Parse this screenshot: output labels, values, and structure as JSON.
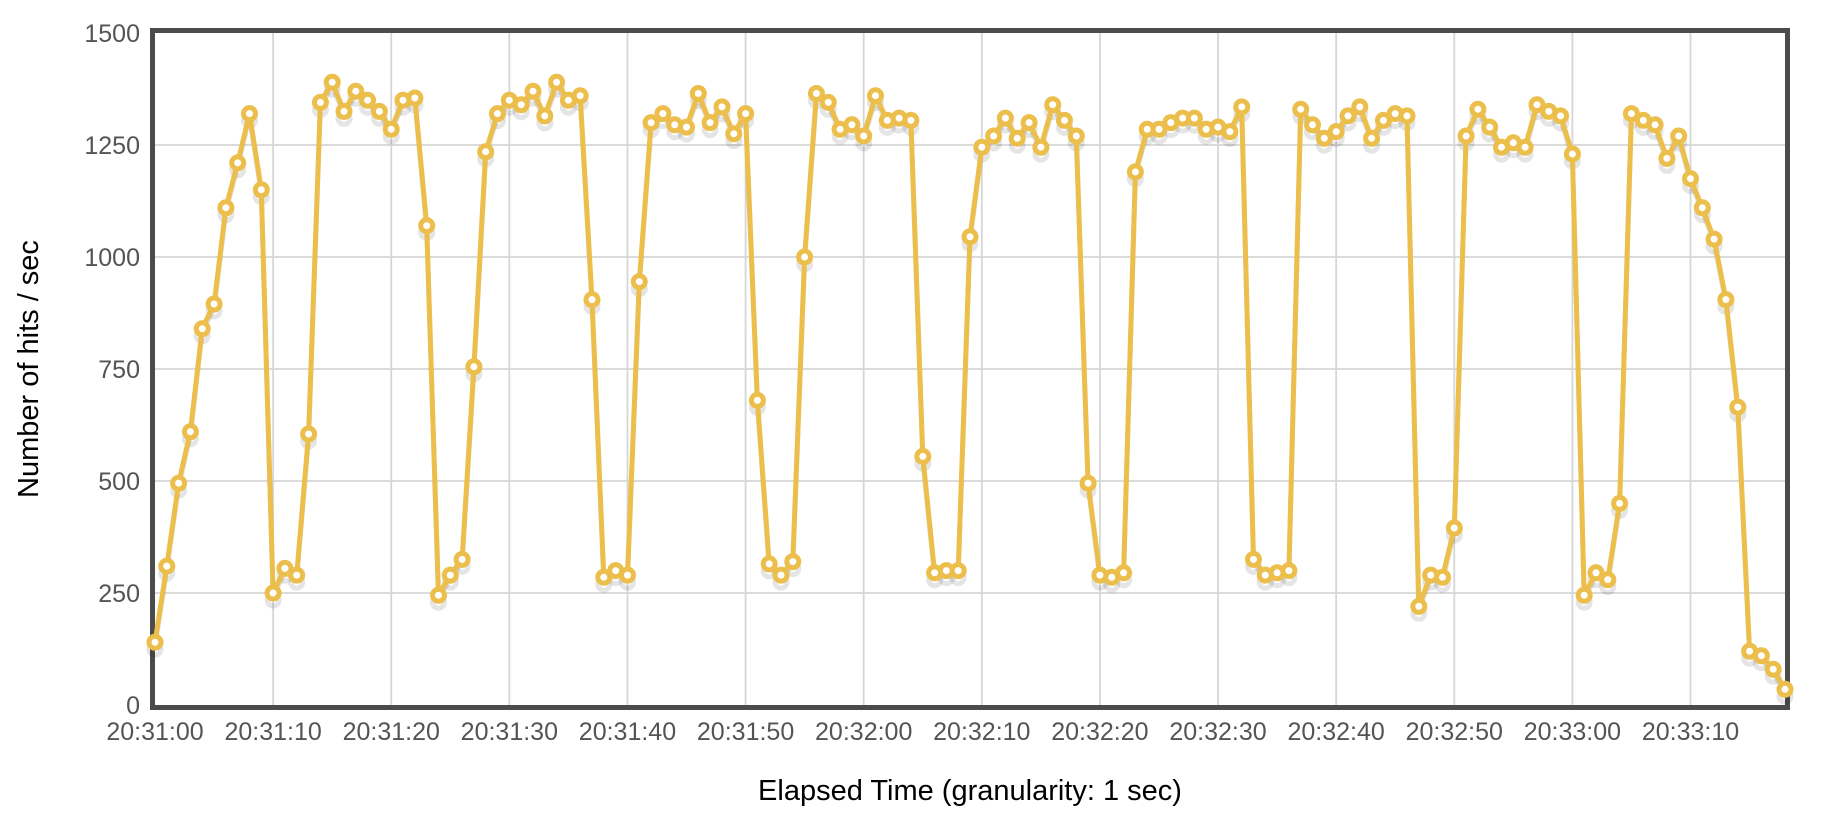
{
  "chart_data": {
    "type": "line",
    "title": "",
    "xlabel": "Elapsed Time (granularity: 1 sec)",
    "ylabel": "Number of hits / sec",
    "ylim": [
      0,
      1500
    ],
    "y_ticks": [
      0,
      250,
      500,
      750,
      1000,
      1250,
      1500
    ],
    "x_tick_labels": [
      "20:31:00",
      "20:31:10",
      "20:31:20",
      "20:31:30",
      "20:31:40",
      "20:31:50",
      "20:32:00",
      "20:32:10",
      "20:32:20",
      "20:32:30",
      "20:32:40",
      "20:32:50",
      "20:33:00",
      "20:33:10"
    ],
    "x_tick_seconds": [
      0,
      10,
      20,
      30,
      40,
      50,
      60,
      70,
      80,
      90,
      100,
      110,
      120,
      130
    ],
    "x_start": "20:31:00",
    "x_end": "20:33:18",
    "granularity_sec": 1,
    "total_seconds": 138,
    "grid": true,
    "legend": "none",
    "series": [
      {
        "name": "Number of hits / sec",
        "marker": "open-circle",
        "values": [
          140,
          310,
          495,
          610,
          840,
          895,
          1110,
          1210,
          1320,
          1150,
          250,
          305,
          290,
          605,
          1345,
          1390,
          1325,
          1370,
          1350,
          1325,
          1285,
          1350,
          1355,
          1070,
          245,
          290,
          325,
          755,
          1235,
          1320,
          1350,
          1340,
          1370,
          1315,
          1390,
          1350,
          1360,
          905,
          285,
          300,
          290,
          945,
          1300,
          1320,
          1295,
          1290,
          1365,
          1300,
          1335,
          1275,
          1320,
          680,
          315,
          290,
          320,
          1000,
          1365,
          1345,
          1285,
          1295,
          1270,
          1360,
          1305,
          1310,
          1305,
          555,
          295,
          300,
          300,
          1045,
          1245,
          1270,
          1310,
          1265,
          1300,
          1245,
          1340,
          1305,
          1270,
          495,
          290,
          285,
          295,
          1190,
          1285,
          1285,
          1300,
          1310,
          1310,
          1285,
          1290,
          1280,
          1335,
          325,
          290,
          295,
          300,
          1330,
          1295,
          1265,
          1280,
          1315,
          1335,
          1265,
          1305,
          1320,
          1315,
          220,
          290,
          285,
          395,
          1270,
          1330,
          1290,
          1245,
          1255,
          1245,
          1340,
          1325,
          1315,
          1230,
          245,
          295,
          280,
          450,
          1320,
          1305,
          1295,
          1220,
          1270,
          1175,
          1110,
          1040,
          905,
          665,
          120,
          110,
          80,
          35
        ]
      }
    ]
  },
  "style": {
    "line_color": "#ECBE4B",
    "marker_fill": "#FFFFFF",
    "grid_color": "#D6D6D6",
    "border_color": "#4B4B4B",
    "tick_label_color": "#545454",
    "axis_title_color": "#000000",
    "background": "#FFFFFF"
  }
}
